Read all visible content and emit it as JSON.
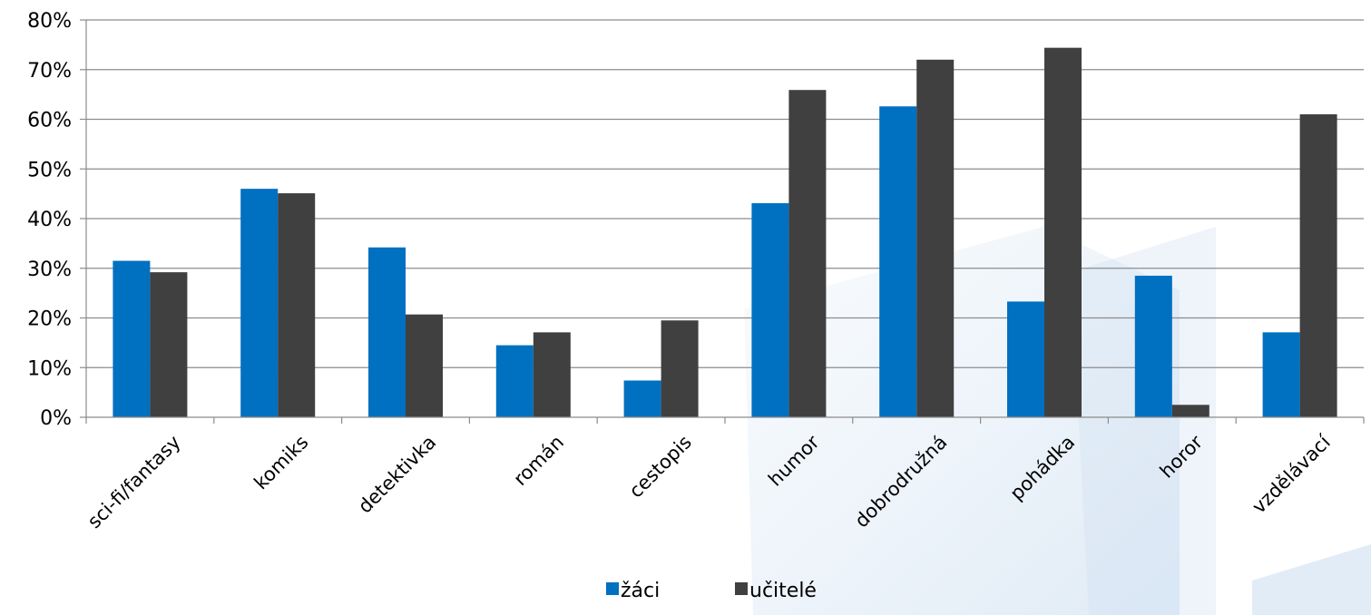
{
  "chart_data": {
    "type": "bar",
    "categories": [
      "sci-fi/fantasy",
      "komiks",
      "detektivka",
      "román",
      "cestopis",
      "humor",
      "dobrodružná",
      "pohádka",
      "horor",
      "vzdělávací"
    ],
    "series": [
      {
        "name": "žáci",
        "color": "#0070c0",
        "values": [
          31.5,
          46,
          34.2,
          14.5,
          7.4,
          43.1,
          62.6,
          23.3,
          28.5,
          17.1
        ]
      },
      {
        "name": "učitelé",
        "color": "#404040",
        "values": [
          29.2,
          45.1,
          20.7,
          17.1,
          19.5,
          65.9,
          72,
          74.4,
          2.5,
          61
        ]
      }
    ],
    "yticks": [
      "0%",
      "10%",
      "20%",
      "30%",
      "40%",
      "50%",
      "60%",
      "70%",
      "80%"
    ],
    "ylim": [
      0,
      80
    ],
    "grid": true,
    "legend_position": "bottom-center"
  }
}
